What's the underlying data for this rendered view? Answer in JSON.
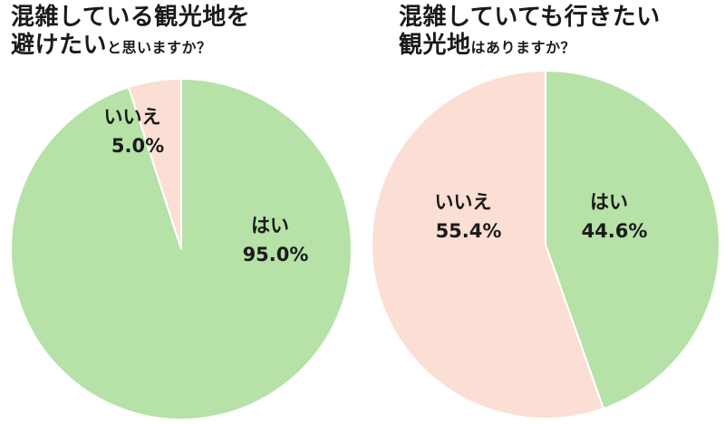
{
  "charts_titles": {
    "left": {
      "line1": "混雑している観光地を",
      "line2_big": "避けたい",
      "line2_small": "と思いますか？"
    },
    "right": {
      "line1": "混雑していても行きたい",
      "line2_big": "観光地",
      "line2_small": "はありますか？"
    }
  },
  "colors": {
    "yes": "#b6e1a7",
    "no": "#fbdfd4",
    "stroke": "#ffffff"
  },
  "chart_data": [
    {
      "type": "pie",
      "title": "混雑している観光地を避けたいと思いますか？",
      "slices": [
        {
          "label": "はい",
          "value": 95.0,
          "display": "95.0%",
          "color": "#b6e1a7"
        },
        {
          "label": "いいえ",
          "value": 5.0,
          "display": "5.0%",
          "color": "#fbdfd4"
        }
      ]
    },
    {
      "type": "pie",
      "title": "混雑していても行きたい観光地はありますか？",
      "slices": [
        {
          "label": "はい",
          "value": 44.6,
          "display": "44.6%",
          "color": "#b6e1a7"
        },
        {
          "label": "いいえ",
          "value": 55.4,
          "display": "55.4%",
          "color": "#fbdfd4"
        }
      ]
    }
  ]
}
